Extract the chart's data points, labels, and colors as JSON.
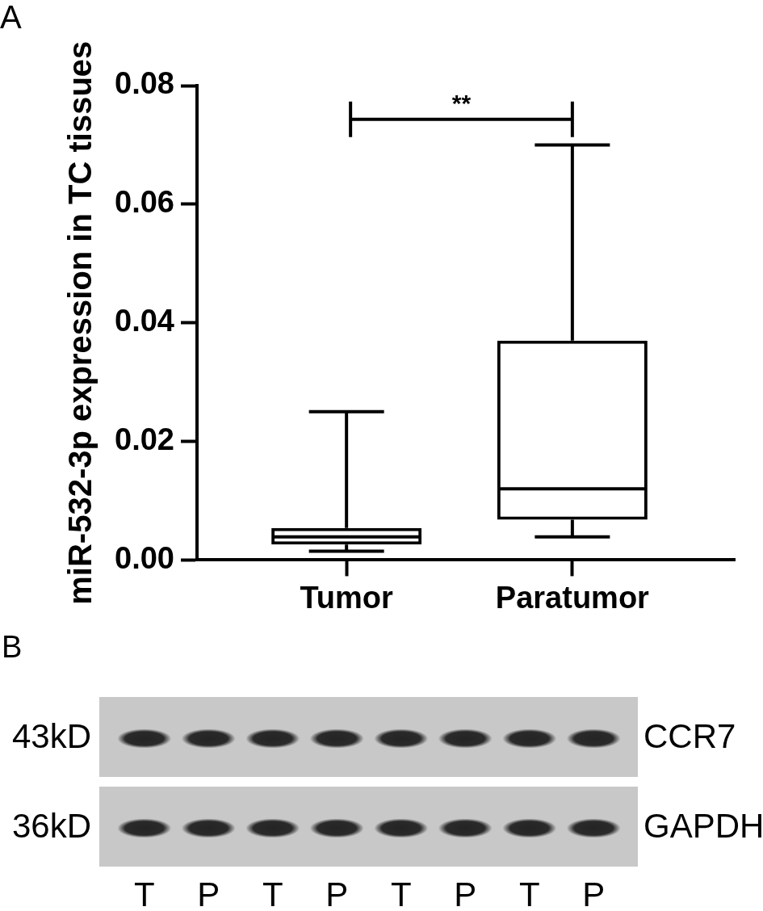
{
  "chart_data": [
    {
      "type": "box",
      "title": "A",
      "ylabel": "miR-532-3p expression in TC tissues",
      "categories": [
        "Tumor",
        "Paratumor"
      ],
      "color": "#000000",
      "boxes": [
        {
          "low": 0.0015,
          "q1": 0.0026,
          "median": 0.0039,
          "q3": 0.0054,
          "high": 0.025
        },
        {
          "low": 0.0039,
          "q1": 0.0068,
          "median": 0.012,
          "q3": 0.037,
          "high": 0.07
        }
      ],
      "ylim": [
        0,
        0.08
      ],
      "yticks": [
        {
          "value": 0,
          "label": "0.00"
        },
        0.02,
        0.04,
        0.06,
        0.08
      ],
      "annotations": [
        "**"
      ]
    },
    {
      "type": "other",
      "title": "B",
      "categories": [
        "T",
        "P",
        "T",
        "P",
        "T",
        "P",
        "T",
        "P"
      ],
      "annotations": [
        "43kD",
        "CCR7",
        "36kD",
        "GAPDH"
      ]
    }
  ]
}
